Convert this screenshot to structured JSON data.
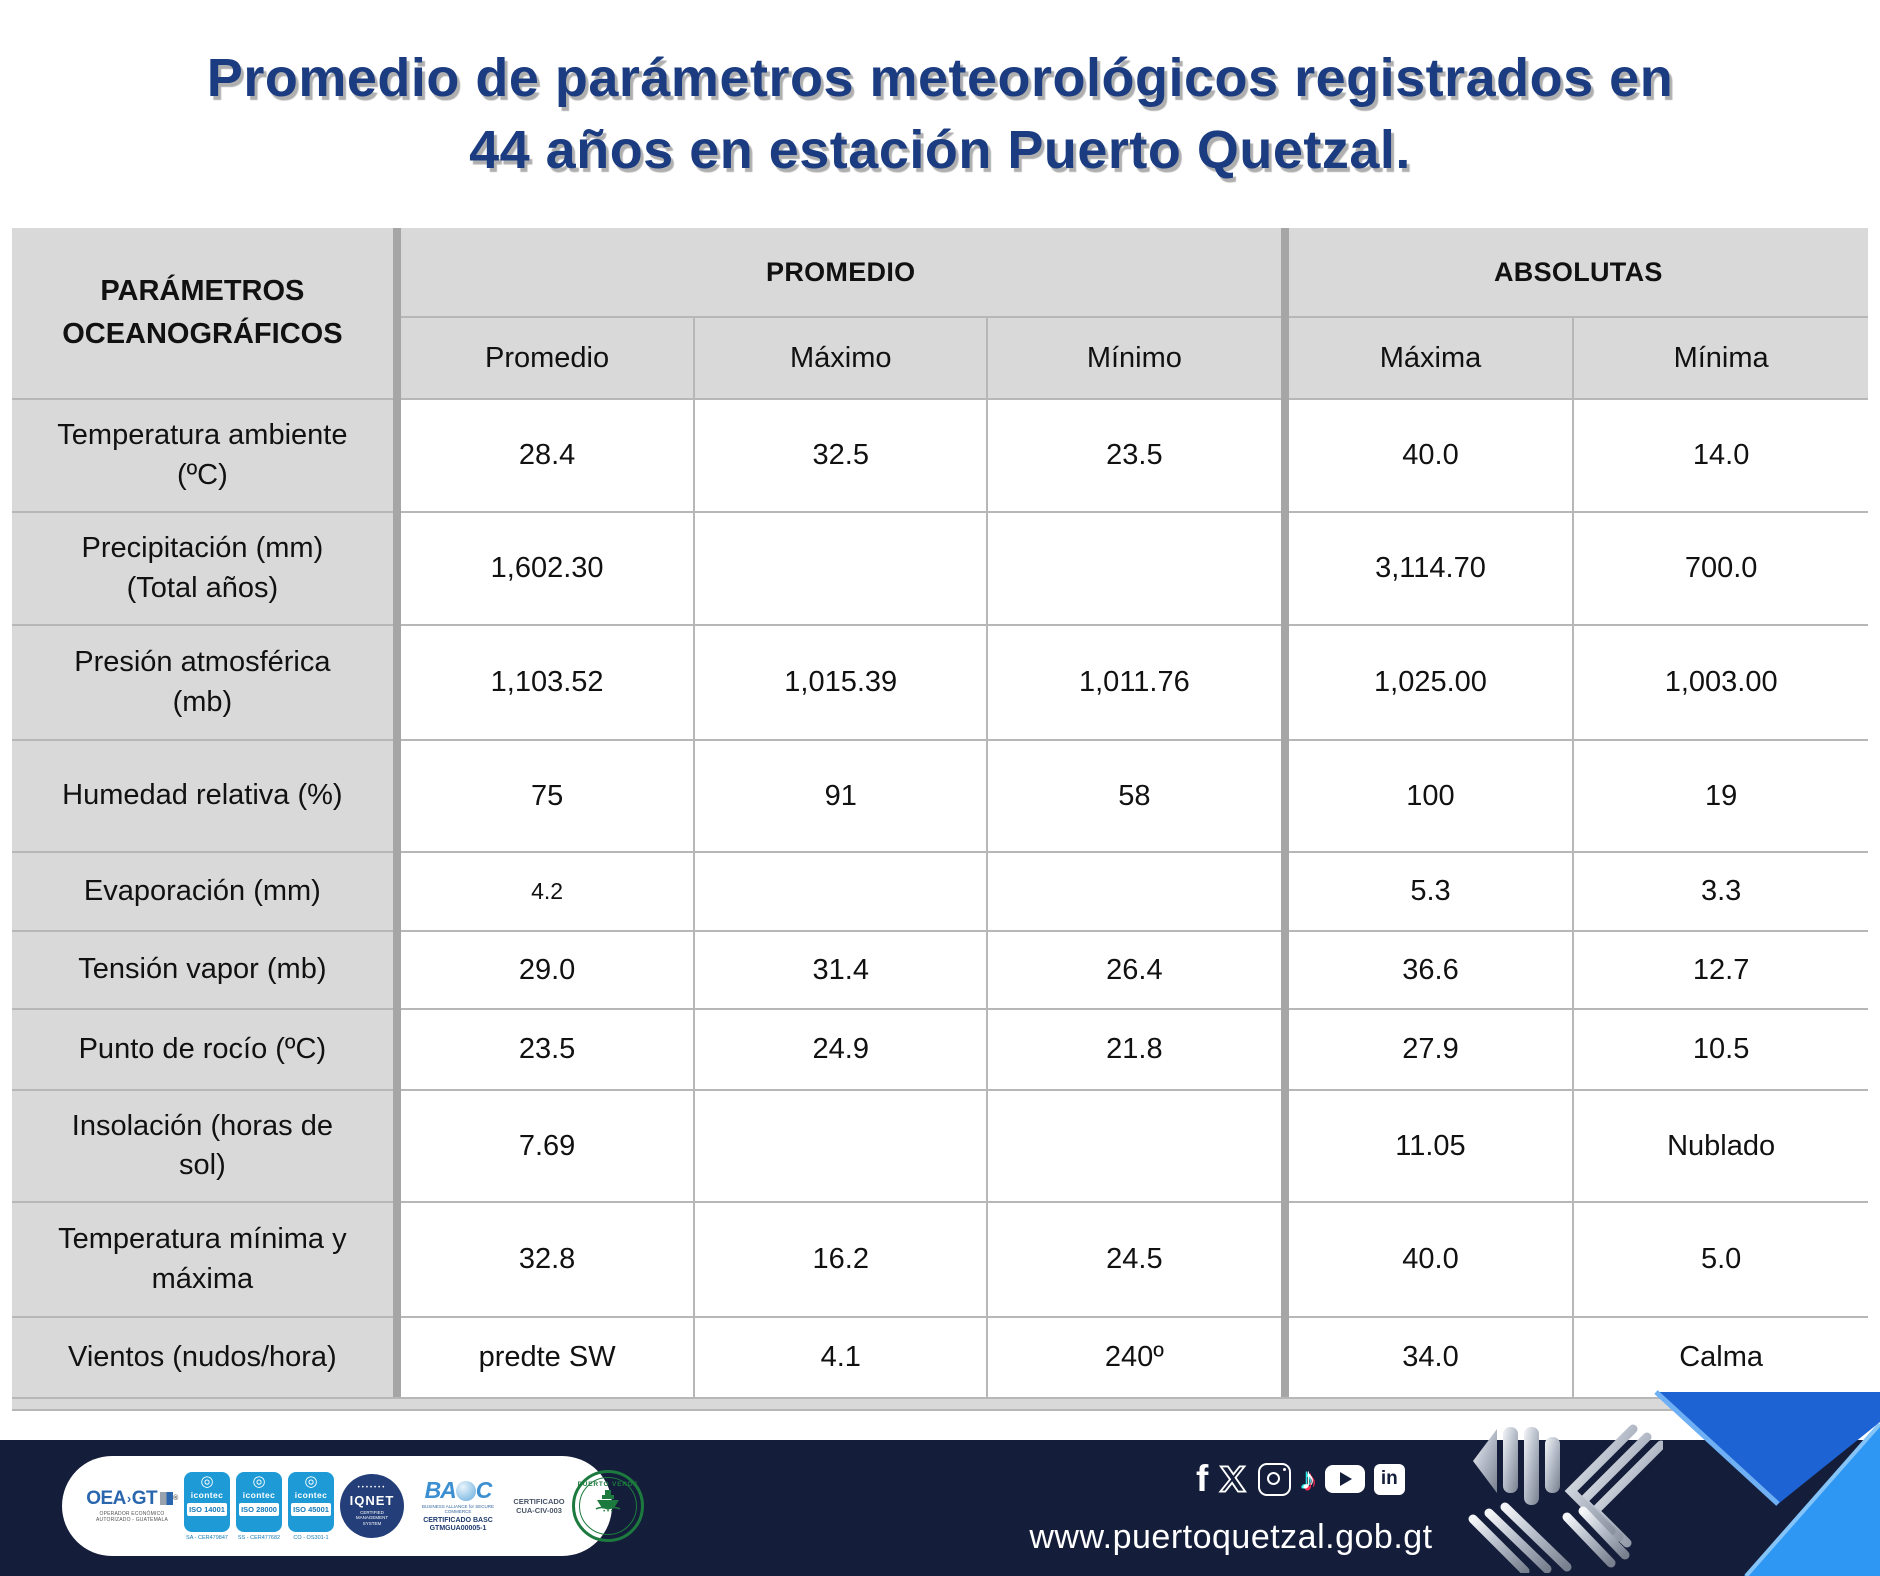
{
  "title": {
    "line1": "Promedio de parámetros meteorológicos registrados en",
    "line2": "44 años en estación Puerto Quetzal."
  },
  "table": {
    "corner_header": "PARÁMETROS OCEANOGRÁFICOS",
    "groups": [
      {
        "label": "PROMEDIO",
        "columns": [
          "Promedio",
          "Máximo",
          "Mínimo"
        ]
      },
      {
        "label": "ABSOLUTAS",
        "columns": [
          "Máxima",
          "Mínima"
        ]
      }
    ],
    "rows": [
      {
        "label": "Temperatura ambiente (ºC)",
        "values": [
          "28.4",
          "32.5",
          "23.5",
          "40.0",
          "14.0"
        ]
      },
      {
        "label": "Precipitación (mm) (Total años)",
        "values": [
          "1,602.30",
          "",
          "",
          "3,114.70",
          "700.0"
        ]
      },
      {
        "label": "Presión atmosférica (mb)",
        "values": [
          "1,103.52",
          "1,015.39",
          "1,011.76",
          "1,025.00",
          "1,003.00"
        ]
      },
      {
        "label": "Humedad relativa (%)",
        "values": [
          "75",
          "91",
          "58",
          "100",
          "19"
        ]
      },
      {
        "label": "Evaporación (mm)",
        "values": [
          "4.2",
          "",
          "",
          "5.3",
          "3.3"
        ]
      },
      {
        "label": "Tensión vapor (mb)",
        "values": [
          "29.0",
          "31.4",
          "26.4",
          "36.6",
          "12.7"
        ]
      },
      {
        "label": "Punto de rocío (ºC)",
        "values": [
          "23.5",
          "24.9",
          "21.8",
          "27.9",
          "10.5"
        ]
      },
      {
        "label": "Insolación (horas de sol)",
        "values": [
          "7.69",
          "",
          "",
          "11.05",
          "Nublado"
        ]
      },
      {
        "label": "Temperatura mínima y máxima",
        "values": [
          "32.8",
          "16.2",
          "24.5",
          "40.0",
          "5.0"
        ]
      },
      {
        "label": "Vientos (nudos/hora)",
        "values": [
          "predte SW",
          "4.1",
          "240º",
          "34.0",
          "Calma"
        ]
      }
    ]
  },
  "chart_data": {
    "type": "table",
    "title": "Promedio de parámetros meteorológicos registrados en 44 años en estación Puerto Quetzal.",
    "columns": [
      "PARÁMETROS OCEANOGRÁFICOS",
      "PROMEDIO Promedio",
      "PROMEDIO Máximo",
      "PROMEDIO Mínimo",
      "ABSOLUTAS Máxima",
      "ABSOLUTAS Mínima"
    ],
    "rows": [
      [
        "Temperatura ambiente (ºC)",
        "28.4",
        "32.5",
        "23.5",
        "40.0",
        "14.0"
      ],
      [
        "Precipitación (mm) (Total años)",
        "1,602.30",
        "",
        "",
        "3,114.70",
        "700.0"
      ],
      [
        "Presión atmosférica (mb)",
        "1,103.52",
        "1,015.39",
        "1,011.76",
        "1,025.00",
        "1,003.00"
      ],
      [
        "Humedad relativa (%)",
        "75",
        "91",
        "58",
        "100",
        "19"
      ],
      [
        "Evaporación (mm)",
        "4.2",
        "",
        "",
        "5.3",
        "3.3"
      ],
      [
        "Tensión vapor (mb)",
        "29.0",
        "31.4",
        "26.4",
        "36.6",
        "12.7"
      ],
      [
        "Punto de rocío (ºC)",
        "23.5",
        "24.9",
        "21.8",
        "27.9",
        "10.5"
      ],
      [
        "Insolación (horas de sol)",
        "7.69",
        "",
        "",
        "11.05",
        "Nublado"
      ],
      [
        "Temperatura mínima y máxima",
        "32.8",
        "16.2",
        "24.5",
        "40.0",
        "5.0"
      ],
      [
        "Vientos (nudos/hora)",
        "predte SW",
        "4.1",
        "240º",
        "34.0",
        "Calma"
      ]
    ]
  },
  "footer": {
    "url": "www.puertoquetzal.gob.gt",
    "social_icons": [
      "facebook",
      "x-twitter",
      "instagram",
      "tiktok",
      "youtube",
      "linkedin"
    ],
    "certifications": {
      "oea": {
        "name1": "OEA",
        "name2": "GT",
        "reg": "®",
        "subtitle": "OPERADOR ECONÓMICO AUTORIZADO - GUATEMALA"
      },
      "icontec_badges": [
        {
          "brand": "icontec",
          "standard": "ISO 14001",
          "code": "SA - CER479847"
        },
        {
          "brand": "icontec",
          "standard": "ISO 28000",
          "code": "SS - CER477682"
        },
        {
          "brand": "icontec",
          "standard": "ISO 45001",
          "code": "CO - OS301-1"
        }
      ],
      "iqnet": {
        "name": "IQNET",
        "subtitle": "CERTIFIED MANAGEMENT SYSTEM"
      },
      "basc": {
        "name1": "BA",
        "name2": "C",
        "subtitle": "BUSINESS ALLIANCE for SECURE COMMERCE",
        "cert_line1": "CERTIFICADO BASC",
        "cert_line2": "GTMGUA00005-1"
      },
      "cert_side": {
        "line1": "CERTIFICADO",
        "line2": "CUA-CIV-003"
      },
      "puerto_verde": {
        "name": "PUERTO VERDE",
        "dots": "• • •"
      }
    }
  },
  "colors": {
    "title_navy": "#1b3c80",
    "footer_navy": "#141d3a",
    "table_gray": "#d9d9d9",
    "divider_gray": "#a6a6a6",
    "icontec_blue": "#1e9bd7",
    "accent_blue_dark": "#1e63d3",
    "accent_blue_light": "#2e97f4",
    "puerto_verde_green": "#1d7a3e"
  }
}
